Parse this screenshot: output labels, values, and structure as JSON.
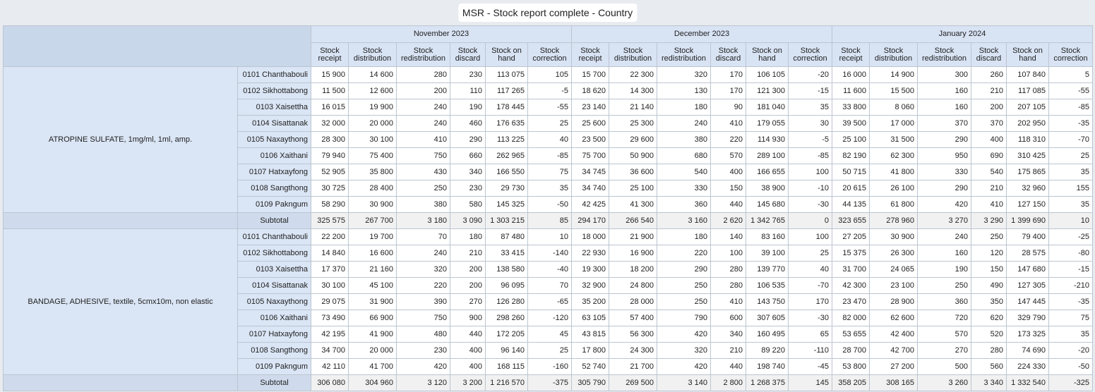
{
  "header": {
    "title": "MSR - Stock report complete - Country"
  },
  "table": {
    "months": [
      {
        "label": "November 2023",
        "columns": [
          "Stock receipt",
          "Stock distribution",
          "Stock redistribution",
          "Stock discard",
          "Stock on hand",
          "Stock correction"
        ]
      },
      {
        "label": "December 2023",
        "columns": [
          "Stock receipt",
          "Stock distribution",
          "Stock redistribution",
          "Stock discard",
          "Stock on hand",
          "Stock correction"
        ]
      },
      {
        "label": "January 2024",
        "columns": [
          "Stock receipt",
          "Stock distribution",
          "Stock redistribution",
          "Stock discard",
          "Stock on hand",
          "Stock correction"
        ]
      }
    ],
    "groups": [
      {
        "product": "ATROPINE SULFATE, 1mg/ml, 1ml, amp.",
        "rows": [
          {
            "district": "0101 Chanthabouli",
            "values": [
              "15 900",
              "14 600",
              "280",
              "230",
              "113 075",
              "105",
              "15 700",
              "22 300",
              "320",
              "170",
              "106 105",
              "-20",
              "16 000",
              "14 900",
              "300",
              "260",
              "107 840",
              "5"
            ]
          },
          {
            "district": "0102 Sikhottabong",
            "values": [
              "11 500",
              "12 600",
              "200",
              "110",
              "117 265",
              "-5",
              "18 620",
              "14 300",
              "130",
              "170",
              "121 300",
              "-15",
              "11 600",
              "15 500",
              "160",
              "210",
              "117 085",
              "-55"
            ]
          },
          {
            "district": "0103 Xaisettha",
            "values": [
              "16 015",
              "19 900",
              "240",
              "190",
              "178 445",
              "-55",
              "23 140",
              "21 140",
              "180",
              "90",
              "181 040",
              "35",
              "33 800",
              "8 060",
              "160",
              "200",
              "207 105",
              "-85"
            ]
          },
          {
            "district": "0104 Sisattanak",
            "values": [
              "32 000",
              "20 000",
              "240",
              "460",
              "176 635",
              "25",
              "25 600",
              "25 300",
              "240",
              "410",
              "179 055",
              "30",
              "39 500",
              "17 000",
              "370",
              "370",
              "202 950",
              "-35"
            ]
          },
          {
            "district": "0105 Naxaythong",
            "values": [
              "28 300",
              "30 100",
              "410",
              "290",
              "113 225",
              "40",
              "23 500",
              "29 600",
              "380",
              "220",
              "114 930",
              "-5",
              "25 100",
              "31 500",
              "290",
              "400",
              "118 310",
              "-70"
            ]
          },
          {
            "district": "0106 Xaithani",
            "values": [
              "79 940",
              "75 400",
              "750",
              "660",
              "262 965",
              "-85",
              "75 700",
              "50 900",
              "680",
              "570",
              "289 100",
              "-85",
              "82 190",
              "62 300",
              "950",
              "690",
              "310 425",
              "25"
            ]
          },
          {
            "district": "0107 Hatxayfong",
            "values": [
              "52 905",
              "35 800",
              "430",
              "340",
              "166 550",
              "75",
              "34 745",
              "36 600",
              "540",
              "400",
              "166 655",
              "100",
              "50 715",
              "41 800",
              "330",
              "540",
              "175 865",
              "35"
            ]
          },
          {
            "district": "0108 Sangthong",
            "values": [
              "30 725",
              "28 400",
              "250",
              "230",
              "29 730",
              "35",
              "34 740",
              "25 100",
              "330",
              "150",
              "38 900",
              "-10",
              "20 615",
              "26 100",
              "290",
              "210",
              "32 960",
              "155"
            ]
          },
          {
            "district": "0109 Pakngum",
            "values": [
              "58 290",
              "30 900",
              "380",
              "580",
              "145 325",
              "-50",
              "42 425",
              "41 300",
              "360",
              "440",
              "145 680",
              "-30",
              "44 135",
              "61 800",
              "420",
              "410",
              "127 150",
              "35"
            ]
          }
        ],
        "subtotal": {
          "label": "Subtotal",
          "values": [
            "325 575",
            "267 700",
            "3 180",
            "3 090",
            "1 303 215",
            "85",
            "294 170",
            "266 540",
            "3 160",
            "2 620",
            "1 342 765",
            "0",
            "323 655",
            "278 960",
            "3 270",
            "3 290",
            "1 399 690",
            "10"
          ]
        }
      },
      {
        "product": "BANDAGE, ADHESIVE, textile, 5cmx10m, non elastic",
        "rows": [
          {
            "district": "0101 Chanthabouli",
            "values": [
              "22 200",
              "19 700",
              "70",
              "180",
              "87 480",
              "10",
              "18 000",
              "21 900",
              "180",
              "140",
              "83 160",
              "100",
              "27 205",
              "30 900",
              "240",
              "250",
              "79 400",
              "-25"
            ]
          },
          {
            "district": "0102 Sikhottabong",
            "values": [
              "14 840",
              "16 600",
              "240",
              "210",
              "33 415",
              "-140",
              "22 930",
              "16 900",
              "220",
              "100",
              "39 100",
              "25",
              "15 375",
              "26 300",
              "160",
              "120",
              "28 575",
              "-80"
            ]
          },
          {
            "district": "0103 Xaisettha",
            "values": [
              "17 370",
              "21 160",
              "320",
              "200",
              "138 580",
              "-40",
              "19 300",
              "18 200",
              "290",
              "280",
              "139 770",
              "40",
              "31 700",
              "24 065",
              "190",
              "150",
              "147 680",
              "-15"
            ]
          },
          {
            "district": "0104 Sisattanak",
            "values": [
              "30 100",
              "45 100",
              "220",
              "200",
              "96 095",
              "70",
              "32 900",
              "24 800",
              "250",
              "280",
              "106 535",
              "-70",
              "42 300",
              "23 100",
              "250",
              "490",
              "127 305",
              "-210"
            ]
          },
          {
            "district": "0105 Naxaythong",
            "values": [
              "29 075",
              "31 900",
              "390",
              "270",
              "126 280",
              "-65",
              "35 200",
              "28 000",
              "250",
              "410",
              "143 750",
              "170",
              "23 470",
              "28 900",
              "360",
              "350",
              "147 445",
              "-35"
            ]
          },
          {
            "district": "0106 Xaithani",
            "values": [
              "73 490",
              "66 900",
              "750",
              "900",
              "298 260",
              "-120",
              "63 105",
              "57 400",
              "790",
              "600",
              "307 605",
              "-30",
              "82 000",
              "62 600",
              "720",
              "620",
              "329 790",
              "75"
            ]
          },
          {
            "district": "0107 Hatxayfong",
            "values": [
              "42 195",
              "41 900",
              "480",
              "440",
              "172 205",
              "45",
              "43 815",
              "56 300",
              "420",
              "340",
              "160 495",
              "65",
              "53 655",
              "42 400",
              "570",
              "520",
              "173 325",
              "35"
            ]
          },
          {
            "district": "0108 Sangthong",
            "values": [
              "34 700",
              "20 000",
              "230",
              "400",
              "96 140",
              "25",
              "17 800",
              "24 300",
              "320",
              "210",
              "89 220",
              "-110",
              "28 700",
              "42 700",
              "270",
              "280",
              "74 690",
              "-20"
            ]
          },
          {
            "district": "0109 Pakngum",
            "values": [
              "42 110",
              "41 700",
              "420",
              "400",
              "168 115",
              "-160",
              "52 740",
              "21 700",
              "420",
              "440",
              "198 740",
              "-45",
              "53 800",
              "27 200",
              "500",
              "560",
              "224 330",
              "-50"
            ]
          }
        ],
        "subtotal": {
          "label": "Subtotal",
          "values": [
            "306 080",
            "304 960",
            "3 120",
            "3 200",
            "1 216 570",
            "-375",
            "305 790",
            "269 500",
            "3 140",
            "2 800",
            "1 268 375",
            "145",
            "358 205",
            "308 165",
            "3 260",
            "3 340",
            "1 332 540",
            "-325"
          ]
        }
      }
    ]
  }
}
